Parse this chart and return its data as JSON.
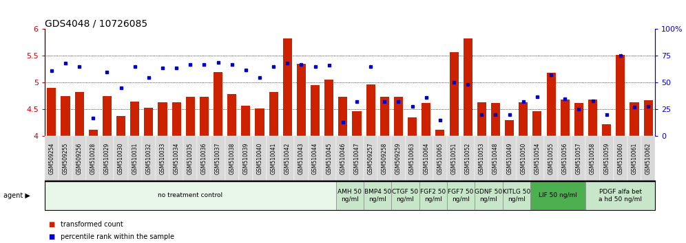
{
  "title": "GDS4048 / 10726085",
  "samples": [
    "GSM509254",
    "GSM509255",
    "GSM509256",
    "GSM510028",
    "GSM510029",
    "GSM510030",
    "GSM510031",
    "GSM510032",
    "GSM510033",
    "GSM510034",
    "GSM510035",
    "GSM510036",
    "GSM510037",
    "GSM510038",
    "GSM510039",
    "GSM510040",
    "GSM510041",
    "GSM510042",
    "GSM510043",
    "GSM510044",
    "GSM510045",
    "GSM510046",
    "GSM510047",
    "GSM509257",
    "GSM509258",
    "GSM509259",
    "GSM510063",
    "GSM510064",
    "GSM510065",
    "GSM510051",
    "GSM510052",
    "GSM510053",
    "GSM510048",
    "GSM510049",
    "GSM510050",
    "GSM510054",
    "GSM510055",
    "GSM510056",
    "GSM510057",
    "GSM510058",
    "GSM510059",
    "GSM510060",
    "GSM510061",
    "GSM510062"
  ],
  "transformed_counts": [
    4.9,
    4.75,
    4.83,
    4.12,
    4.75,
    4.38,
    4.65,
    4.53,
    4.63,
    4.63,
    4.73,
    4.73,
    5.2,
    4.78,
    4.57,
    4.52,
    4.83,
    5.82,
    5.35,
    4.95,
    5.05,
    4.73,
    4.47,
    4.97,
    4.73,
    4.73,
    4.35,
    4.62,
    4.12,
    5.57,
    5.82,
    4.63,
    4.62,
    4.3,
    4.63,
    4.47,
    5.18,
    4.68,
    4.62,
    4.68,
    4.22,
    5.52,
    4.63,
    4.67
  ],
  "percentile_ranks": [
    61,
    68,
    65,
    17,
    60,
    45,
    65,
    55,
    64,
    64,
    67,
    67,
    69,
    67,
    62,
    55,
    65,
    68,
    67,
    65,
    66,
    13,
    32,
    65,
    32,
    32,
    28,
    36,
    15,
    50,
    48,
    20,
    20,
    20,
    32,
    37,
    57,
    35,
    25,
    33,
    20,
    75,
    27,
    28
  ],
  "agents": [
    {
      "label": "no treatment control",
      "start": 0,
      "end": 21,
      "color": "#e8f5e9"
    },
    {
      "label": "AMH 50\nng/ml",
      "start": 21,
      "end": 23,
      "color": "#c8e6c9"
    },
    {
      "label": "BMP4 50\nng/ml",
      "start": 23,
      "end": 25,
      "color": "#c8e6c9"
    },
    {
      "label": "CTGF 50\nng/ml",
      "start": 25,
      "end": 27,
      "color": "#c8e6c9"
    },
    {
      "label": "FGF2 50\nng/ml",
      "start": 27,
      "end": 29,
      "color": "#c8e6c9"
    },
    {
      "label": "FGF7 50\nng/ml",
      "start": 29,
      "end": 31,
      "color": "#c8e6c9"
    },
    {
      "label": "GDNF 50\nng/ml",
      "start": 31,
      "end": 33,
      "color": "#c8e6c9"
    },
    {
      "label": "KITLG 50\nng/ml",
      "start": 33,
      "end": 35,
      "color": "#c8e6c9"
    },
    {
      "label": "LIF 50 ng/ml",
      "start": 35,
      "end": 39,
      "color": "#4caf50"
    },
    {
      "label": "PDGF alfa bet\na hd 50 ng/ml",
      "start": 39,
      "end": 44,
      "color": "#c8e6c9"
    }
  ],
  "ylim_left": [
    4.0,
    6.0
  ],
  "ylim_right": [
    0,
    100
  ],
  "yticks_left": [
    4.0,
    4.5,
    5.0,
    5.5,
    6.0
  ],
  "yticks_right": [
    0,
    25,
    50,
    75,
    100
  ],
  "bar_color": "#cc2200",
  "dot_color": "#0000cc",
  "bar_base": 4.0,
  "title_fontsize": 10,
  "tick_label_fontsize": 5.5,
  "agent_label_fontsize": 6.5,
  "left_axis_color": "#cc0000",
  "right_axis_color": "#0000cc"
}
